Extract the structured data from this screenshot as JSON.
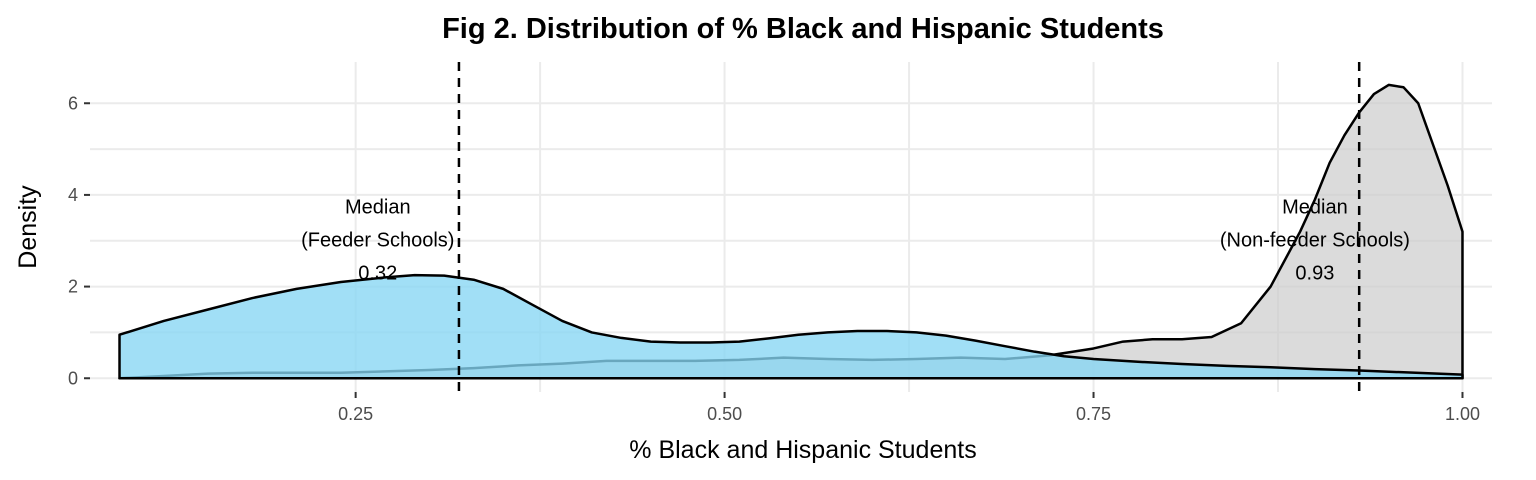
{
  "chart_data": {
    "type": "area",
    "title": "Fig 2. Distribution of % Black and Hispanic Students",
    "xlabel": "% Black and Hispanic Students",
    "ylabel": "Density",
    "xlim": [
      0.07,
      1.02
    ],
    "ylim": [
      -0.3,
      6.9
    ],
    "x_ticks": [
      0.25,
      0.5,
      0.75,
      1.0
    ],
    "x_tick_labels": [
      "0.25",
      "0.50",
      "0.75",
      "1.00"
    ],
    "y_ticks": [
      0,
      2,
      4,
      6
    ],
    "y_tick_labels": [
      "0",
      "2",
      "4",
      "6"
    ],
    "grid": true,
    "legend": "none",
    "series": [
      {
        "fill": "#cccccc",
        "fill_opacity": 0.7,
        "x": [
          0.09,
          0.12,
          0.15,
          0.18,
          0.21,
          0.24,
          0.27,
          0.3,
          0.33,
          0.36,
          0.39,
          0.42,
          0.45,
          0.48,
          0.51,
          0.54,
          0.57,
          0.6,
          0.63,
          0.66,
          0.69,
          0.72,
          0.75,
          0.77,
          0.79,
          0.81,
          0.83,
          0.85,
          0.87,
          0.89,
          0.9,
          0.91,
          0.92,
          0.93,
          0.94,
          0.95,
          0.96,
          0.97,
          0.98,
          0.99,
          1.0
        ],
        "y": [
          0.0,
          0.05,
          0.1,
          0.12,
          0.12,
          0.12,
          0.15,
          0.18,
          0.22,
          0.28,
          0.32,
          0.38,
          0.38,
          0.38,
          0.4,
          0.45,
          0.42,
          0.4,
          0.42,
          0.45,
          0.42,
          0.5,
          0.65,
          0.8,
          0.85,
          0.85,
          0.9,
          1.2,
          2.0,
          3.2,
          3.9,
          4.7,
          5.3,
          5.8,
          6.2,
          6.4,
          6.35,
          6.0,
          5.1,
          4.2,
          3.2
        ]
      },
      {
        "fill": "#87d6f4",
        "fill_opacity": 0.78,
        "x": [
          0.09,
          0.12,
          0.15,
          0.18,
          0.21,
          0.24,
          0.27,
          0.29,
          0.31,
          0.33,
          0.35,
          0.37,
          0.39,
          0.41,
          0.43,
          0.45,
          0.47,
          0.49,
          0.51,
          0.53,
          0.55,
          0.57,
          0.59,
          0.61,
          0.63,
          0.65,
          0.67,
          0.69,
          0.71,
          0.73,
          0.75,
          0.78,
          0.81,
          0.84,
          0.87,
          0.9,
          0.93,
          0.96,
          1.0
        ],
        "y": [
          0.95,
          1.25,
          1.5,
          1.75,
          1.95,
          2.1,
          2.2,
          2.25,
          2.24,
          2.15,
          1.95,
          1.6,
          1.25,
          1.0,
          0.88,
          0.8,
          0.78,
          0.78,
          0.8,
          0.87,
          0.95,
          1.0,
          1.03,
          1.03,
          1.0,
          0.93,
          0.82,
          0.7,
          0.58,
          0.48,
          0.42,
          0.36,
          0.31,
          0.27,
          0.24,
          0.2,
          0.17,
          0.13,
          0.08
        ]
      }
    ],
    "reference_lines": [
      {
        "x": 0.32,
        "style": "dashed"
      },
      {
        "x": 0.93,
        "style": "dashed"
      }
    ],
    "annotations": [
      {
        "x": 0.265,
        "lines": [
          "Median",
          "(Feeder Schools)",
          "0.32"
        ],
        "y_top": 3.6
      },
      {
        "x": 0.9,
        "lines": [
          "Median",
          "(Non-feeder Schools)",
          "0.93"
        ],
        "y_top": 3.6
      }
    ]
  }
}
